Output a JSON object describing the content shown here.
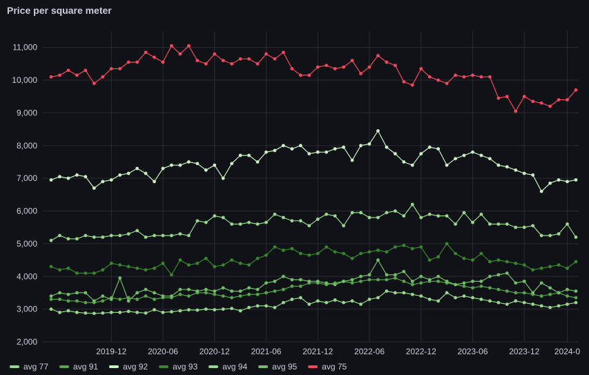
{
  "panel": {
    "title": "Price per square meter"
  },
  "chart_data": {
    "type": "line",
    "title": "Price per square meter",
    "ylim": [
      2000,
      11500
    ],
    "yticks": [
      "2,000",
      "3,000",
      "4,000",
      "5,000",
      "6,000",
      "7,000",
      "8,000",
      "9,000",
      "10,000",
      "11,000"
    ],
    "ytick_values": [
      2000,
      3000,
      4000,
      5000,
      6000,
      7000,
      8000,
      9000,
      10000,
      11000
    ],
    "xticks": [
      "2019-12",
      "2020-06",
      "2020-12",
      "2021-06",
      "2021-12",
      "2022-06",
      "2022-12",
      "2023-06",
      "2023-12",
      "2024-0"
    ],
    "xtick_index": [
      7,
      13,
      19,
      25,
      31,
      37,
      43,
      49,
      55,
      60
    ],
    "grid": true,
    "legend_position": "bottom-left",
    "series": [
      {
        "name": "avg 77",
        "color": "#96d98d",
        "values": [
          3000,
          2900,
          2950,
          2900,
          2880,
          2870,
          2880,
          2900,
          2900,
          2930,
          2900,
          2880,
          2980,
          2900,
          2920,
          2950,
          2980,
          2970,
          3000,
          2980,
          3000,
          3020,
          2950,
          3050,
          3100,
          3100,
          3050,
          3200,
          3300,
          3350,
          3150,
          3250,
          3200,
          3280,
          3200,
          3250,
          3150,
          3300,
          3350,
          3550,
          3500,
          3500,
          3450,
          3400,
          3300,
          3250,
          3500,
          3350,
          3400,
          3350,
          3300,
          3250,
          3200,
          3150,
          3250,
          3200,
          3150,
          3100,
          3050,
          3100,
          3150,
          3200
        ]
      },
      {
        "name": "avg 91",
        "color": "#56a64b",
        "values": [
          3300,
          3300,
          3250,
          3250,
          3200,
          3200,
          3250,
          3350,
          3300,
          3350,
          3300,
          3400,
          3300,
          3350,
          3350,
          3450,
          3400,
          3500,
          3500,
          3450,
          3400,
          3350,
          3400,
          3450,
          3450,
          3500,
          3550,
          3600,
          3700,
          3700,
          3800,
          3800,
          3750,
          3800,
          3850,
          3800,
          3850,
          3900,
          3900,
          3900,
          3950,
          3850,
          3750,
          3800,
          3850,
          3850,
          3800,
          3750,
          3700,
          3650,
          3700,
          3650,
          3600,
          3550,
          3500,
          3500,
          3450,
          3400,
          3450,
          3500,
          3400,
          3350
        ]
      },
      {
        "name": "avg 92",
        "color": "#c8f2c2",
        "values": [
          6950,
          7050,
          7000,
          7100,
          7050,
          6700,
          6900,
          6950,
          7100,
          7150,
          7300,
          7150,
          6900,
          7300,
          7400,
          7400,
          7500,
          7450,
          7250,
          7400,
          7000,
          7450,
          7700,
          7700,
          7500,
          7800,
          7850,
          8000,
          7900,
          8000,
          7750,
          7800,
          7800,
          7900,
          7950,
          7550,
          8000,
          8050,
          8450,
          7950,
          7750,
          7500,
          7400,
          7750,
          7950,
          7900,
          7400,
          7600,
          7700,
          7800,
          7700,
          7600,
          7400,
          7350,
          7250,
          7150,
          7100,
          6600,
          6850,
          6950,
          6900,
          6950
        ]
      },
      {
        "name": "avg 93",
        "color": "#37872d",
        "values": [
          4300,
          4200,
          4250,
          4100,
          4100,
          4100,
          4200,
          4400,
          4350,
          4300,
          4250,
          4200,
          4250,
          4400,
          4050,
          4500,
          4350,
          4400,
          4550,
          4300,
          4350,
          4500,
          4400,
          4350,
          4550,
          4650,
          4900,
          4800,
          4850,
          4700,
          4650,
          4700,
          4900,
          4750,
          4700,
          4550,
          4700,
          4750,
          4800,
          4750,
          4900,
          4950,
          4850,
          4900,
          4500,
          4600,
          5000,
          4700,
          4550,
          4500,
          4700,
          4450,
          4500,
          4450,
          4400,
          4350,
          4200,
          4250,
          4300,
          4350,
          4250,
          4450
        ]
      },
      {
        "name": "avg 94",
        "color": "#96d98d",
        "values": [
          5100,
          5250,
          5150,
          5150,
          5250,
          5200,
          5200,
          5250,
          5250,
          5300,
          5400,
          5200,
          5250,
          5250,
          5250,
          5300,
          5250,
          5700,
          5650,
          5850,
          5800,
          5600,
          5600,
          5650,
          5600,
          5650,
          5900,
          5800,
          5700,
          5700,
          5550,
          5750,
          5900,
          5850,
          5550,
          5950,
          5950,
          5800,
          5800,
          5950,
          6000,
          5850,
          6200,
          5800,
          5900,
          5850,
          5850,
          5600,
          5950,
          5650,
          5900,
          5600,
          5600,
          5600,
          5500,
          5500,
          5550,
          5250,
          5250,
          5300,
          5600,
          5200
        ]
      },
      {
        "name": "avg 95",
        "color": "#73bf69",
        "values": [
          3400,
          3500,
          3450,
          3500,
          3500,
          3250,
          3400,
          3300,
          3950,
          3250,
          3500,
          3600,
          3500,
          3400,
          3400,
          3600,
          3600,
          3550,
          3600,
          3550,
          3650,
          3550,
          3550,
          3650,
          3600,
          3800,
          3850,
          4000,
          3900,
          3900,
          3850,
          3850,
          3800,
          3750,
          3850,
          3900,
          4000,
          4050,
          4500,
          4050,
          4050,
          4150,
          3850,
          4000,
          3900,
          4000,
          3850,
          3750,
          3800,
          3850,
          3850,
          4000,
          4050,
          4100,
          3800,
          3850,
          3500,
          3800,
          3650,
          3500,
          3600,
          3550
        ]
      },
      {
        "name": "avg 75",
        "color": "#f2495c",
        "values": [
          10100,
          10150,
          10300,
          10150,
          10300,
          9900,
          10100,
          10350,
          10350,
          10550,
          10550,
          10850,
          10700,
          10550,
          11050,
          10800,
          11050,
          10600,
          10500,
          10800,
          10600,
          10500,
          10650,
          10650,
          10500,
          10800,
          10650,
          10850,
          10350,
          10150,
          10150,
          10400,
          10450,
          10350,
          10400,
          10600,
          10200,
          10400,
          10750,
          10550,
          10450,
          9950,
          9850,
          10350,
          10100,
          10000,
          9900,
          10150,
          10100,
          10150,
          10100,
          10100,
          9450,
          9500,
          9050,
          9500,
          9350,
          9300,
          9200,
          9400,
          9400,
          9700
        ]
      }
    ]
  }
}
